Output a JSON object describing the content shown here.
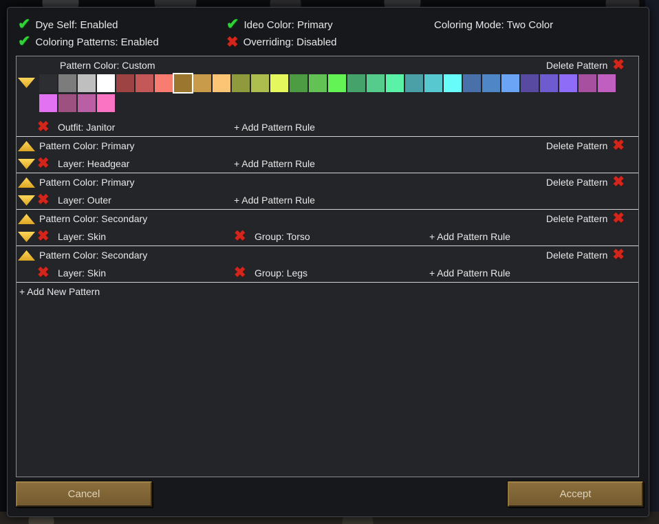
{
  "icons": {
    "check": "✔",
    "cross": "✖"
  },
  "status": {
    "items": [
      {
        "label": "Dye Self: Enabled",
        "state": "enabled"
      },
      {
        "label": "Coloring Patterns: Enabled",
        "state": "enabled"
      },
      {
        "label": "Ideo Color: Primary",
        "state": "enabled"
      },
      {
        "label": "Overriding: Disabled",
        "state": "disabled"
      }
    ],
    "coloring_mode": "Coloring Mode: Two Color"
  },
  "panel": {
    "delete_label": "Delete Pattern",
    "add_rule_label": "+ Add Pattern Rule",
    "add_new_label": "+ Add New Pattern",
    "patterns": [
      {
        "title": "Pattern Color: Custom",
        "rule": "Outfit: Janitor"
      },
      {
        "title": "Pattern Color: Primary",
        "rule": "Layer: Headgear"
      },
      {
        "title": "Pattern Color: Primary",
        "rule": "Layer: Outer"
      },
      {
        "title": "Pattern Color: Secondary",
        "rule": "Layer: Skin",
        "group": "Group: Torso"
      },
      {
        "title": "Pattern Color: Secondary",
        "rule": "Layer: Skin",
        "group": "Group: Legs"
      }
    ]
  },
  "palette": {
    "selected": {
      "row": 0,
      "col": 7
    },
    "rows": [
      [
        "#2c2e32",
        "#7c7c7c",
        "#bfbfbf",
        "#ffffff",
        "#9d4343",
        "#c45757",
        "#f97c70",
        "#9a762f",
        "#c89b4b",
        "#fcc575",
        "#8e9a3c",
        "#adbd4e",
        "#e4f75c",
        "#4d9c43",
        "#63c254",
        "#63f354",
        "#46a26b",
        "#55cb8c",
        "#59f2a7",
        "#4aa0a6",
        "#58c8d0",
        "#67fbf9",
        "#4a70aa",
        "#4f86c6",
        "#6ba4f5",
        "#584aa0",
        "#6f5bd0",
        "#8f6cf8",
        "#a6509f",
        "#c05fc0"
      ],
      [
        "#e372f2",
        "#9d5180",
        "#bb5fa4",
        "#fb74c3"
      ]
    ]
  },
  "footer": {
    "cancel_label": "Cancel",
    "accept_label": "Accept"
  },
  "colors": {
    "accent_gold": "#f2c12e",
    "check_green": "#2fd135",
    "cross_red": "#d3251a",
    "button_brown": "#82683a",
    "panel_bg": "#232529",
    "dialog_bg": "#16181c"
  }
}
